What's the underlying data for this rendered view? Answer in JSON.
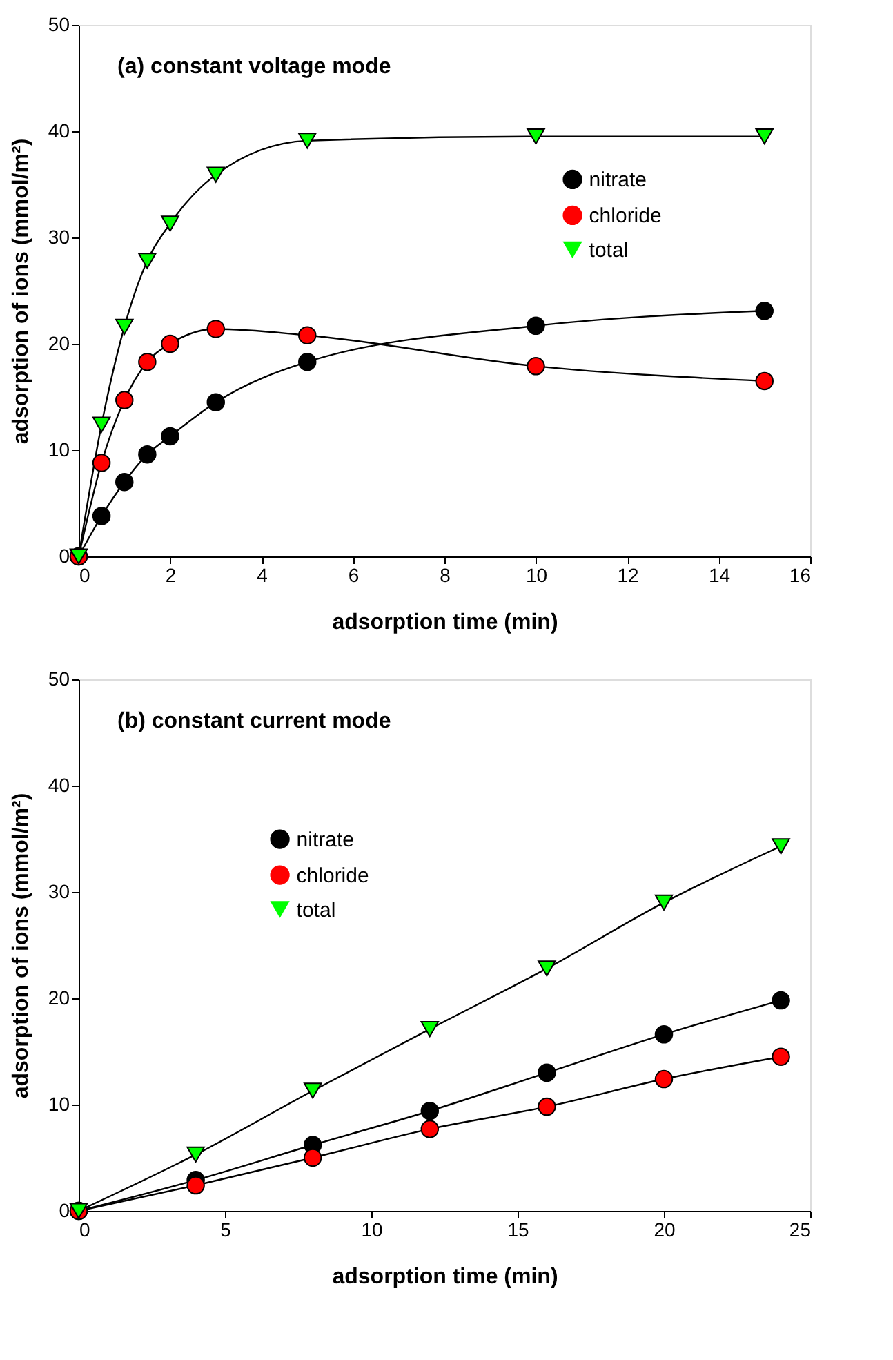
{
  "chart_data": [
    {
      "type": "line",
      "title": "(a) constant voltage mode",
      "xlabel": "adsorption time (min)",
      "ylabel": "adsorption of ions (mmol/m²)",
      "x": [
        0,
        0.5,
        1,
        1.5,
        2,
        3,
        5,
        10,
        15
      ],
      "series": [
        {
          "name": "nitrate",
          "color": "#000000",
          "marker": "circle",
          "values": [
            0,
            3.8,
            7.0,
            9.6,
            11.3,
            14.5,
            18.3,
            21.7,
            23.1
          ]
        },
        {
          "name": "chloride",
          "color": "#ff0000",
          "marker": "circle",
          "values": [
            0,
            8.8,
            14.7,
            18.3,
            20.0,
            21.4,
            20.8,
            17.9,
            16.5
          ]
        },
        {
          "name": "total",
          "color": "#00ff00",
          "marker": "triangle",
          "values": [
            0,
            12.4,
            21.6,
            27.8,
            31.3,
            35.9,
            39.1,
            39.5,
            39.5
          ]
        }
      ],
      "xlim": [
        0,
        16
      ],
      "xticks": [
        0,
        2,
        4,
        6,
        8,
        10,
        12,
        14,
        16
      ],
      "ylim": [
        0,
        50
      ],
      "yticks": [
        0,
        10,
        20,
        30,
        40,
        50
      ],
      "grid": false,
      "legend": "top right",
      "line_style": "solid"
    },
    {
      "type": "line",
      "title": "(b) constant current mode",
      "xlabel": "adsorption time (min)",
      "ylabel": "adsorption of ions (mmol/m²)",
      "x": [
        0,
        4,
        8,
        12,
        16,
        20,
        24
      ],
      "series": [
        {
          "name": "nitrate",
          "color": "#000000",
          "marker": "circle",
          "values": [
            0,
            2.9,
            6.2,
            9.4,
            13.0,
            16.6,
            19.8
          ]
        },
        {
          "name": "chloride",
          "color": "#ff0000",
          "marker": "circle",
          "values": [
            0,
            2.4,
            5.0,
            7.7,
            9.8,
            12.4,
            14.5
          ]
        },
        {
          "name": "total",
          "color": "#00ff00",
          "marker": "triangle",
          "values": [
            0,
            5.3,
            11.3,
            17.1,
            22.8,
            29.0,
            34.3
          ]
        }
      ],
      "xlim": [
        0,
        25
      ],
      "xticks": [
        0,
        5,
        10,
        15,
        20,
        25
      ],
      "ylim": [
        0,
        50
      ],
      "yticks": [
        0,
        10,
        20,
        30,
        40,
        50
      ],
      "grid": false,
      "legend": "top left",
      "line_style": "solid"
    }
  ]
}
